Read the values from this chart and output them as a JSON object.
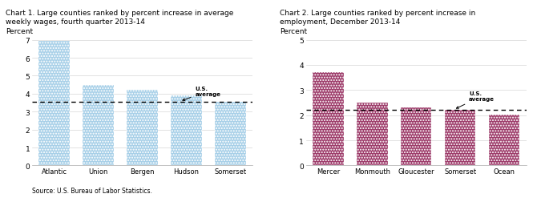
{
  "chart1": {
    "title": "Chart 1. Large counties ranked by percent increase in average\nweekly wages, fourth quarter 2013-14",
    "ylabel": "Percent",
    "categories": [
      "Atlantic",
      "Union",
      "Bergen",
      "Hudson",
      "Somerset"
    ],
    "values": [
      6.95,
      4.5,
      4.2,
      3.9,
      3.55
    ],
    "bar_color": "#a8d0e8",
    "ylim": [
      0,
      7
    ],
    "yticks": [
      0,
      1,
      2,
      3,
      4,
      5,
      6,
      7
    ],
    "avg_line": 3.55,
    "avg_label": "U.S.\naverage",
    "avg_arrow_xi": 3,
    "avg_arrow_xtext": 3.2,
    "avg_arrow_ytext": 3.85,
    "source": "Source: U.S. Bureau of Labor Statistics."
  },
  "chart2": {
    "title": "Chart 2. Large counties ranked by percent increase in\nemployment, December 2013-14",
    "ylabel": "Percent",
    "categories": [
      "Mercer",
      "Monmouth",
      "Gloucester",
      "Somerset",
      "Ocean"
    ],
    "values": [
      3.7,
      2.5,
      2.3,
      2.2,
      2.02
    ],
    "bar_color": "#9e3d6b",
    "ylim": [
      0,
      5
    ],
    "yticks": [
      0,
      1,
      2,
      3,
      4,
      5
    ],
    "avg_line": 2.2,
    "avg_label": "U.S.\naverage",
    "avg_arrow_xi": 3,
    "avg_arrow_xtext": 3.2,
    "avg_arrow_ytext": 2.55
  }
}
